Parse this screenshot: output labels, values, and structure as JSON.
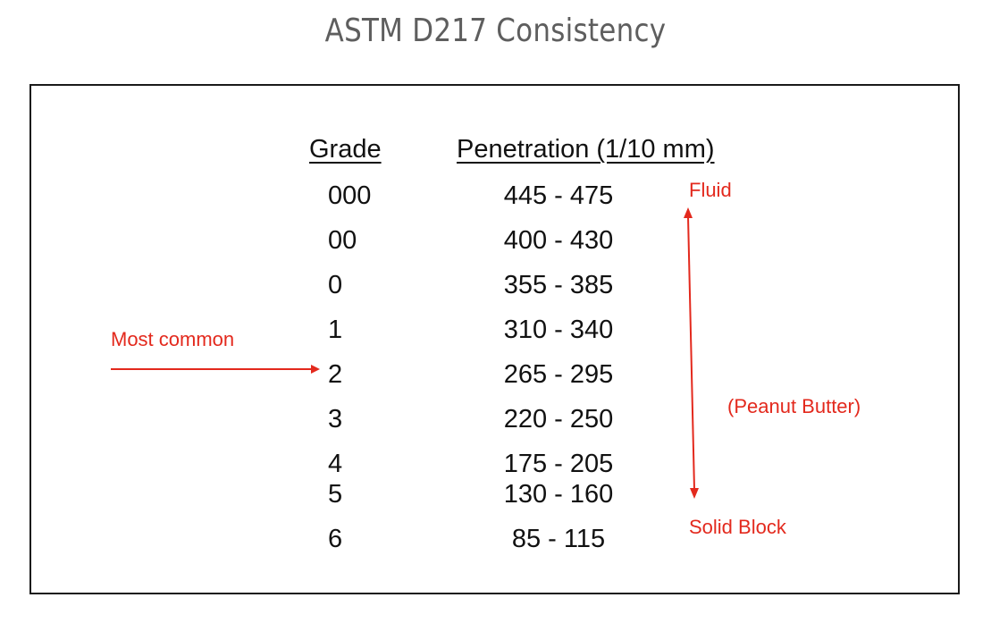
{
  "title": "ASTM D217 Consistency",
  "table": {
    "headers": {
      "grade": "Grade",
      "penetration": "Penetration (1/10 mm)"
    },
    "rows": [
      {
        "grade": "000",
        "penetration": "445 - 475"
      },
      {
        "grade": "00",
        "penetration": "400 - 430"
      },
      {
        "grade": "0",
        "penetration": "355 - 385"
      },
      {
        "grade": "1",
        "penetration": "310 - 340"
      },
      {
        "grade": "2",
        "penetration": "265 - 295"
      },
      {
        "grade": "3",
        "penetration": "220 - 250"
      },
      {
        "grade": "4",
        "penetration": "175 - 205"
      },
      {
        "grade": "5",
        "penetration": "130 - 160"
      },
      {
        "grade": "6",
        "penetration": "85 - 115"
      }
    ]
  },
  "annotations": {
    "most_common": "Most common",
    "fluid": "Fluid",
    "peanut_butter": "(Peanut Butter)",
    "solid_block": "Solid Block"
  },
  "colors": {
    "annotation": "#e3291d",
    "title": "#5e5e5e",
    "text": "#111111"
  }
}
